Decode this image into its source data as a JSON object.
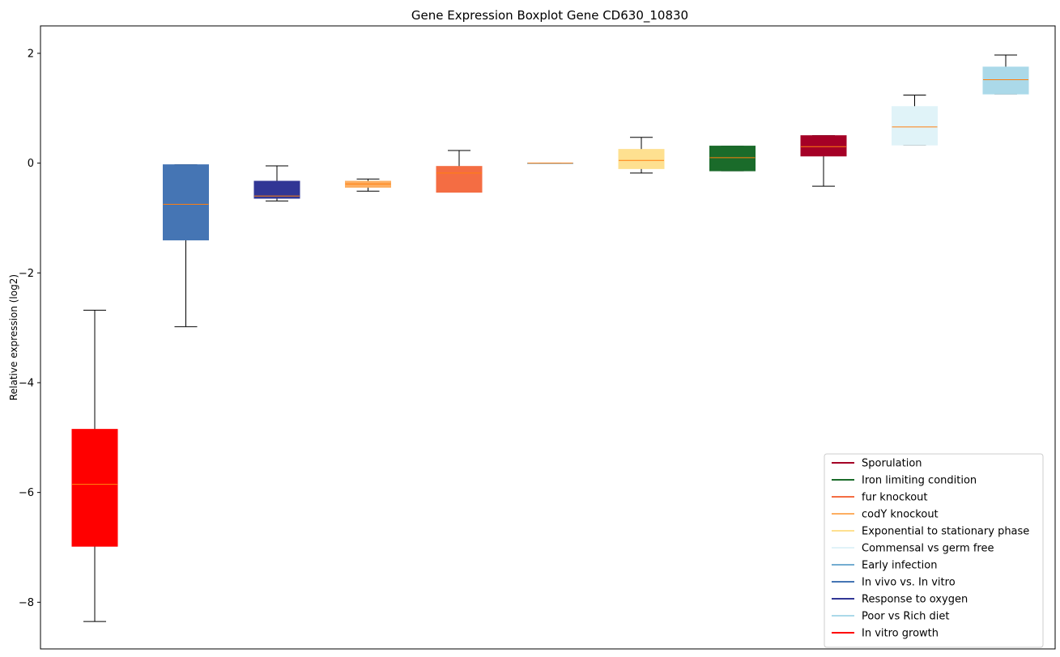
{
  "chart_data": {
    "type": "boxplot",
    "title": "Gene Expression Boxplot Gene CD630_10830",
    "xlabel": "",
    "ylabel": "Relative expression (log2)",
    "ylim": [
      -8.85,
      2.5
    ],
    "yticks": [
      -8,
      -6,
      -4,
      -2,
      0,
      2
    ],
    "ytick_labels": [
      "−8",
      "−6",
      "−4",
      "−2",
      "0",
      "2"
    ],
    "median_color": "#ff7f0e",
    "legend_position": "lower right",
    "boxes": [
      {
        "name": "In vitro growth",
        "color": "#ff0000",
        "whislo": -8.35,
        "q1": -6.98,
        "med": -5.85,
        "q3": -4.85,
        "whishi": -2.68
      },
      {
        "name": "In vivo vs. In vitro",
        "color": "#4575b4",
        "whislo": -2.98,
        "q1": -1.4,
        "med": -0.75,
        "q3": -0.03,
        "whishi": -0.03
      },
      {
        "name": "Response to oxygen",
        "color": "#313695",
        "whislo": -0.69,
        "q1": -0.64,
        "med": -0.6,
        "q3": -0.33,
        "whishi": -0.05
      },
      {
        "name": "codY knockout",
        "color": "#fdae61",
        "whislo": -0.51,
        "q1": -0.44,
        "med": -0.38,
        "q3": -0.33,
        "whishi": -0.29
      },
      {
        "name": "fur knockout",
        "color": "#f46d43",
        "whislo": -0.53,
        "q1": -0.53,
        "med": -0.18,
        "q3": -0.06,
        "whishi": 0.23
      },
      {
        "name": "Early infection",
        "color": "#74add1",
        "whislo": 0.0,
        "q1": 0.0,
        "med": 0.0,
        "q3": 0.0,
        "whishi": 0.0
      },
      {
        "name": "Exponential to stationary phase",
        "color": "#fee090",
        "whislo": -0.18,
        "q1": -0.1,
        "med": 0.05,
        "q3": 0.25,
        "whishi": 0.47
      },
      {
        "name": "Iron limiting condition",
        "color": "#1a6b2a",
        "whislo": -0.14,
        "q1": -0.14,
        "med": 0.1,
        "q3": 0.31,
        "whishi": 0.31
      },
      {
        "name": "Sporulation",
        "color": "#a50026",
        "whislo": -0.42,
        "q1": 0.13,
        "med": 0.3,
        "q3": 0.5,
        "whishi": 0.5
      },
      {
        "name": "Commensal vs germ free",
        "color": "#e0f3f8",
        "whislo": 0.33,
        "q1": 0.33,
        "med": 0.66,
        "q3": 1.03,
        "whishi": 1.24
      },
      {
        "name": "Poor vs Rich diet",
        "color": "#abd9e9",
        "whislo": 1.26,
        "q1": 1.26,
        "med": 1.52,
        "q3": 1.75,
        "whishi": 1.97
      }
    ],
    "legend": [
      {
        "label": "Sporulation",
        "color": "#a50026"
      },
      {
        "label": "Iron limiting condition",
        "color": "#1a6b2a"
      },
      {
        "label": "fur knockout",
        "color": "#f46d43"
      },
      {
        "label": "codY knockout",
        "color": "#fdae61"
      },
      {
        "label": "Exponential to stationary phase",
        "color": "#fee090"
      },
      {
        "label": "Commensal vs germ free",
        "color": "#e0f3f8"
      },
      {
        "label": "Early infection",
        "color": "#74add1"
      },
      {
        "label": "In vivo vs. In vitro",
        "color": "#4575b4"
      },
      {
        "label": "Response to oxygen",
        "color": "#313695"
      },
      {
        "label": "Poor vs Rich diet",
        "color": "#abd9e9"
      },
      {
        "label": "In vitro growth",
        "color": "#ff0000"
      }
    ]
  }
}
